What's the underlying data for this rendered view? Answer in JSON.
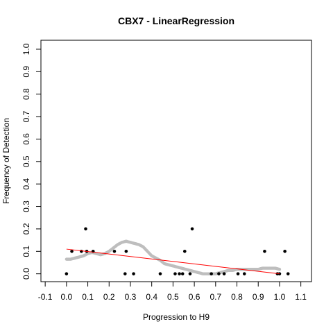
{
  "chart_data": {
    "type": "scatter",
    "title": "CBX7 - LinearRegression",
    "xlabel": "Progression to H9",
    "ylabel": "Frequency of Detection",
    "xlim": [
      -0.12,
      1.15
    ],
    "ylim": [
      -0.035,
      1.04
    ],
    "x_ticks": [
      "-0.1",
      "0.0",
      "0.1",
      "0.2",
      "0.3",
      "0.4",
      "0.5",
      "0.6",
      "0.7",
      "0.8",
      "0.9",
      "1.0",
      "1.1"
    ],
    "y_ticks": [
      "0.0",
      "0.1",
      "0.2",
      "0.3",
      "0.4",
      "0.5",
      "0.6",
      "0.7",
      "0.8",
      "0.9",
      "1.0"
    ],
    "grid": false,
    "colors": {
      "observed": "#000000",
      "smoothed": "#bebebe",
      "fit": "#ff0000"
    },
    "series": [
      {
        "role": "observed",
        "style": "points",
        "x": [
          0.0,
          0.025,
          0.07,
          0.09,
          0.095,
          0.125,
          0.225,
          0.275,
          0.28,
          0.315,
          0.44,
          0.51,
          0.53,
          0.545,
          0.555,
          0.58,
          0.59,
          0.68,
          0.715,
          0.74,
          0.805,
          0.835,
          0.93,
          0.99,
          1.0,
          1.025,
          1.04
        ],
        "y": [
          0.0,
          0.1,
          0.1,
          0.2,
          0.1,
          0.1,
          0.1,
          0.0,
          0.1,
          0.0,
          0.0,
          0.0,
          0.0,
          0.0,
          0.1,
          0.0,
          0.2,
          0.0,
          0.0,
          0.0,
          0.0,
          0.0,
          0.1,
          0.0,
          0.0,
          0.1,
          0.0
        ]
      },
      {
        "role": "smoothed",
        "style": "dense-points",
        "x": [
          0.0,
          0.02,
          0.04,
          0.06,
          0.08,
          0.1,
          0.12,
          0.14,
          0.16,
          0.18,
          0.2,
          0.22,
          0.24,
          0.26,
          0.28,
          0.3,
          0.32,
          0.34,
          0.36,
          0.38,
          0.4,
          0.42,
          0.44,
          0.46,
          0.48,
          0.5,
          0.52,
          0.54,
          0.56,
          0.58,
          0.6,
          0.62,
          0.64,
          0.66,
          0.68,
          0.7,
          0.72,
          0.74,
          0.76,
          0.78,
          0.8,
          0.82,
          0.84,
          0.86,
          0.88,
          0.9,
          0.92,
          0.94,
          0.96,
          0.98,
          1.0
        ],
        "y": [
          0.065,
          0.065,
          0.07,
          0.075,
          0.08,
          0.09,
          0.095,
          0.09,
          0.085,
          0.09,
          0.1,
          0.115,
          0.13,
          0.14,
          0.145,
          0.14,
          0.135,
          0.13,
          0.12,
          0.1,
          0.08,
          0.07,
          0.06,
          0.045,
          0.04,
          0.035,
          0.03,
          0.025,
          0.02,
          0.015,
          0.01,
          0.005,
          0.0,
          0.0,
          0.0,
          0.0,
          0.005,
          0.01,
          0.015,
          0.015,
          0.02,
          0.02,
          0.02,
          0.02,
          0.02,
          0.02,
          0.025,
          0.025,
          0.025,
          0.025,
          0.02
        ]
      },
      {
        "role": "fit",
        "style": "line",
        "x": [
          0.0,
          1.0
        ],
        "y": [
          0.11,
          0.0
        ]
      }
    ]
  }
}
